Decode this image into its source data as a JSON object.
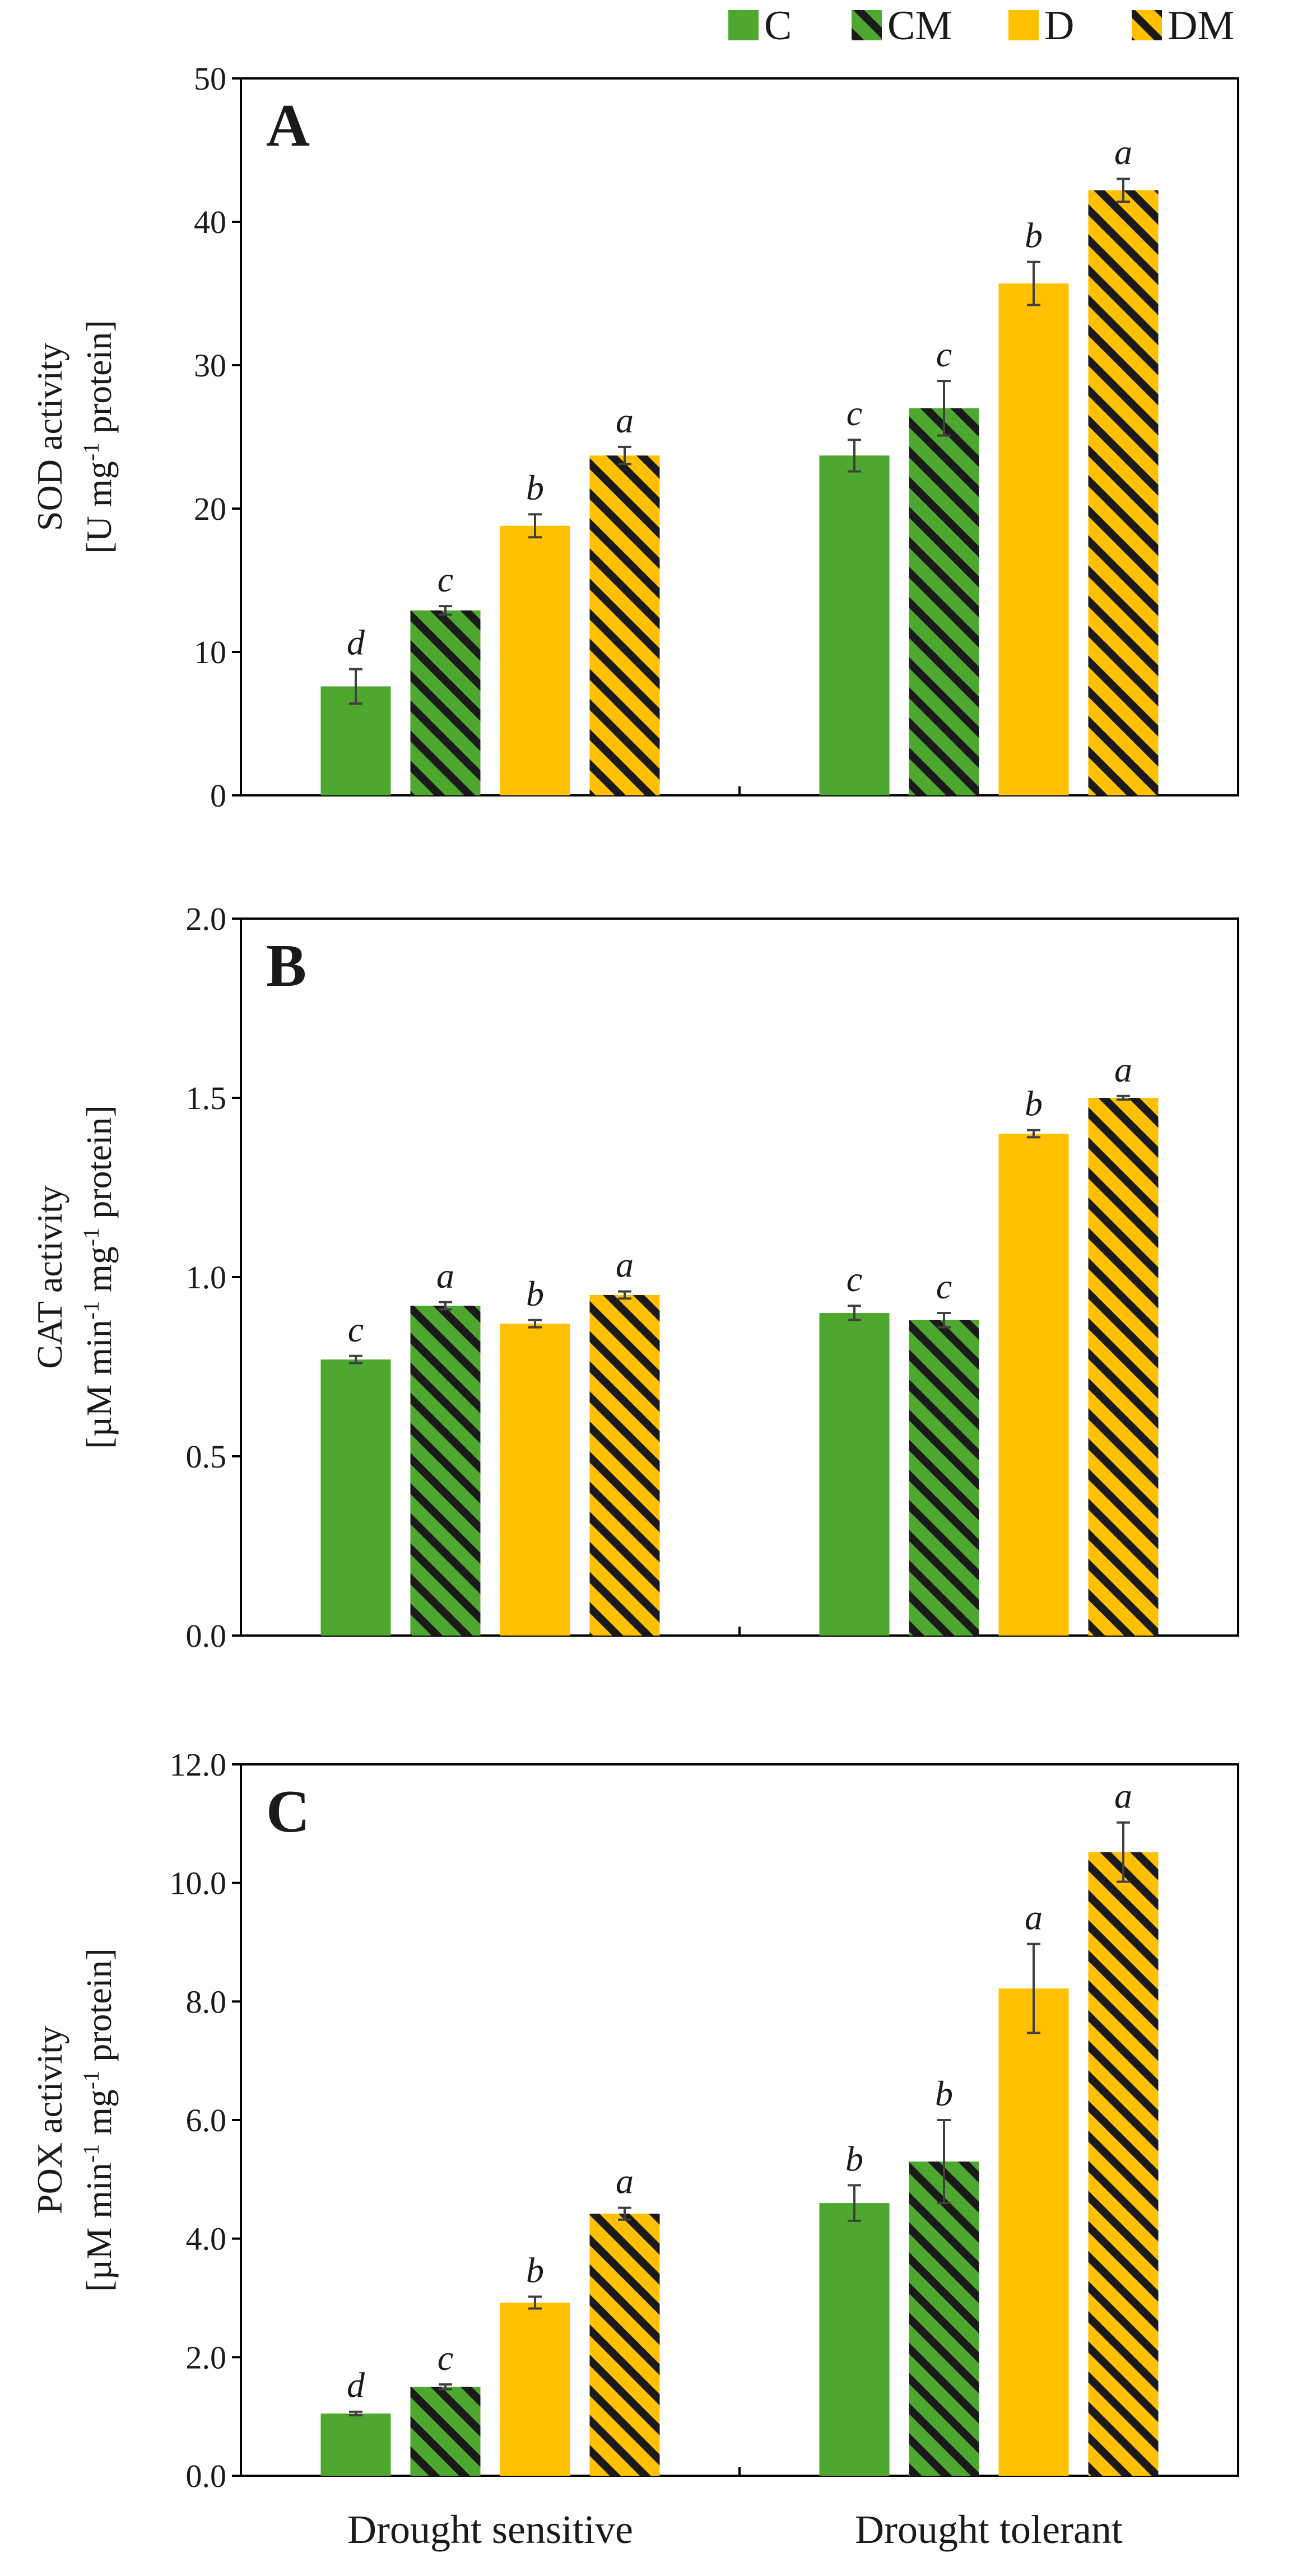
{
  "colors": {
    "C": "#4ea72e",
    "CM_base": "#4ea72e",
    "D": "#ffc000",
    "DM_base": "#ffc000",
    "stripe": "#1a1a1a",
    "axis": "#000000",
    "error": "#404040"
  },
  "legend": [
    {
      "key": "C",
      "label": "C",
      "fill": "C",
      "hatched": false
    },
    {
      "key": "CM",
      "label": "CM",
      "fill": "CM_base",
      "hatched": true
    },
    {
      "key": "D",
      "label": "D",
      "fill": "D",
      "hatched": false
    },
    {
      "key": "DM",
      "label": "DM",
      "fill": "DM_base",
      "hatched": true
    }
  ],
  "chart_data": [
    {
      "type": "bar",
      "panel": "A",
      "ylabel_lines": [
        "SOD activity",
        "[U mg",
        "-1",
        " protein]"
      ],
      "ylim": [
        0,
        50
      ],
      "yticks": [
        "0",
        "10",
        "20",
        "30",
        "40",
        "50"
      ],
      "categories": [
        "Drought sensitive",
        "Drought tolerant"
      ],
      "series": [
        {
          "name": "C",
          "values": [
            7.6,
            23.7
          ],
          "errors": [
            1.2,
            1.1
          ],
          "letters": [
            "d",
            "c"
          ]
        },
        {
          "name": "CM",
          "values": [
            12.9,
            27.0
          ],
          "errors": [
            0.3,
            1.9
          ],
          "letters": [
            "c",
            "c"
          ]
        },
        {
          "name": "D",
          "values": [
            18.8,
            35.7
          ],
          "errors": [
            0.8,
            1.5
          ],
          "letters": [
            "b",
            "b"
          ]
        },
        {
          "name": "DM",
          "values": [
            23.7,
            42.2
          ],
          "errors": [
            0.6,
            0.8
          ],
          "letters": [
            "a",
            "a"
          ]
        }
      ]
    },
    {
      "type": "bar",
      "panel": "B",
      "ylabel_lines": [
        "CAT activity",
        "[µM min",
        "-1",
        " mg",
        "-1",
        " protein]"
      ],
      "ylim": [
        0,
        2.0
      ],
      "yticks": [
        "0.0",
        "0.5",
        "1.0",
        "1.5",
        "2.0"
      ],
      "categories": [
        "Drought sensitive",
        "Drought tolerant"
      ],
      "series": [
        {
          "name": "C",
          "values": [
            0.77,
            0.9
          ],
          "errors": [
            0.01,
            0.02
          ],
          "letters": [
            "c",
            "c"
          ]
        },
        {
          "name": "CM",
          "values": [
            0.92,
            0.88
          ],
          "errors": [
            0.01,
            0.02
          ],
          "letters": [
            "a",
            "c"
          ]
        },
        {
          "name": "D",
          "values": [
            0.87,
            1.4
          ],
          "errors": [
            0.01,
            0.01
          ],
          "letters": [
            "b",
            "b"
          ]
        },
        {
          "name": "DM",
          "values": [
            0.95,
            1.5
          ],
          "errors": [
            0.01,
            0.005
          ],
          "letters": [
            "a",
            "a"
          ]
        }
      ]
    },
    {
      "type": "bar",
      "panel": "C",
      "ylabel_lines": [
        "POX activity",
        "[µM min",
        "-1",
        " mg",
        "-1",
        " protein]"
      ],
      "ylim": [
        0,
        12.0
      ],
      "yticks": [
        "0.0",
        "2.0",
        "4.0",
        "6.0",
        "8.0",
        "10.0",
        "12.0"
      ],
      "categories": [
        "Drought sensitive",
        "Drought tolerant"
      ],
      "series": [
        {
          "name": "C",
          "values": [
            1.05,
            4.6
          ],
          "errors": [
            0.03,
            0.3
          ],
          "letters": [
            "d",
            "b"
          ]
        },
        {
          "name": "CM",
          "values": [
            1.5,
            5.3
          ],
          "errors": [
            0.04,
            0.7
          ],
          "letters": [
            "c",
            "b"
          ]
        },
        {
          "name": "D",
          "values": [
            2.92,
            8.22
          ],
          "errors": [
            0.1,
            0.75
          ],
          "letters": [
            "b",
            "a"
          ]
        },
        {
          "name": "DM",
          "values": [
            4.42,
            10.52
          ],
          "errors": [
            0.1,
            0.5
          ],
          "letters": [
            "a",
            "a"
          ]
        }
      ]
    }
  ]
}
